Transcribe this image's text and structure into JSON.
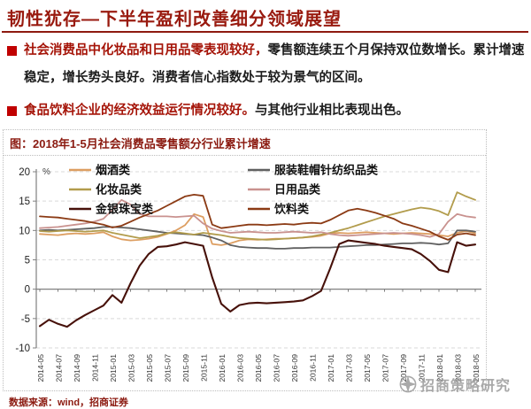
{
  "slide": {
    "title": "韧性犹存—下半年盈利改善细分领域展望",
    "bullets": [
      {
        "highlight": "社会消费品中化妆品和日用品零表现较好，",
        "rest": "零售额连续五个月保持双位数增长。累计增速稳定，增长势头良好。消费者信心指数处于较为景气的区间。"
      },
      {
        "highlight": "食品饮料企业的经济效益运行情况较好。",
        "rest": "与其他行业相比表现出色。"
      }
    ],
    "figure_caption": "图：2018年1-5月社会消费品零售额分行业累计增速",
    "footer_source": "数据来源：wind，招商证券",
    "watermark": "招商策略研究",
    "colors": {
      "title_red": "#991a0f",
      "highlight_red": "#a51408",
      "bullet_square": "#c00000",
      "caption_red": "#8b1a10",
      "grid_gray": "#d9d9d9",
      "axis_gray": "#808080",
      "watermark_gray": "#9b9b9b"
    }
  },
  "chart_data": {
    "type": "line",
    "title": "2018年1-5月社会消费品零售额分行业累计增速",
    "unit": "%",
    "ylim": [
      -10,
      20
    ],
    "yticks": [
      20,
      15,
      10,
      5,
      0,
      -5,
      -10
    ],
    "grid": "dashed-horizontal",
    "legend_position": "top-inside-two-columns",
    "x": [
      "2014-05",
      "2014-06",
      "2014-07",
      "2014-08",
      "2014-09",
      "2014-10",
      "2014-11",
      "2014-12",
      "2015-01",
      "2015-02",
      "2015-03",
      "2015-04",
      "2015-05",
      "2015-06",
      "2015-07",
      "2015-08",
      "2015-09",
      "2015-10",
      "2015-11",
      "2015-12",
      "2016-01",
      "2016-02",
      "2016-03",
      "2016-04",
      "2016-05",
      "2016-06",
      "2016-07",
      "2016-08",
      "2016-09",
      "2016-10",
      "2016-11",
      "2016-12",
      "2017-01",
      "2017-02",
      "2017-03",
      "2017-04",
      "2017-05",
      "2017-06",
      "2017-07",
      "2017-08",
      "2017-09",
      "2017-10",
      "2017-11",
      "2017-12",
      "2018-01",
      "2018-02",
      "2018-03",
      "2018-04",
      "2018-05"
    ],
    "x_tick_labels": [
      "2014-05",
      "2014-07",
      "2014-09",
      "2014-11",
      "2015-01",
      "2015-03",
      "2015-05",
      "2015-07",
      "2015-09",
      "2015-11",
      "2016-01",
      "2016-03",
      "2016-05",
      "2016-07",
      "2016-09",
      "2016-11",
      "2017-01",
      "2017-03",
      "2017-05",
      "2017-07",
      "2017-09",
      "2017-11",
      "2018-01",
      "2018-03",
      "2018-05"
    ],
    "series": [
      {
        "name": "烟酒类",
        "color": "#dd9e61",
        "values": [
          9.4,
          9.3,
          9.2,
          9.4,
          9.5,
          9.4,
          9.5,
          9.7,
          9.0,
          8.5,
          8.3,
          8.4,
          8.6,
          8.9,
          9.4,
          10.0,
          10.9,
          12.8,
          12.3,
          7.7,
          7.5,
          7.8,
          8.3,
          8.5,
          8.4,
          8.5,
          8.6,
          8.6,
          8.7,
          8.8,
          8.9,
          9.1,
          9.5,
          9.6,
          9.5,
          9.6,
          9.7,
          9.6,
          9.5,
          9.4,
          9.5,
          9.6,
          9.5,
          9.4,
          9.2,
          9.0,
          9.6,
          9.9,
          9.5
        ]
      },
      {
        "name": "服装鞋帽针纺织品类",
        "color": "#606060",
        "values": [
          10.0,
          10.1,
          10.0,
          10.1,
          10.2,
          10.3,
          10.4,
          10.6,
          10.6,
          10.5,
          10.4,
          10.2,
          10.0,
          9.8,
          9.6,
          9.5,
          9.4,
          9.3,
          9.2,
          8.8,
          8.3,
          7.5,
          7.2,
          7.1,
          7.0,
          7.0,
          6.9,
          6.9,
          7.0,
          7.0,
          7.1,
          7.1,
          7.1,
          7.2,
          7.3,
          7.4,
          7.5,
          7.5,
          7.6,
          7.7,
          7.8,
          7.8,
          7.9,
          7.8,
          7.6,
          7.8,
          10.0,
          10.0,
          9.8
        ]
      },
      {
        "name": "化妆品类",
        "color": "#b29c4c",
        "values": [
          9.9,
          9.8,
          9.9,
          10.0,
          9.9,
          9.8,
          9.9,
          10.0,
          9.6,
          9.3,
          9.0,
          8.7,
          8.9,
          9.1,
          9.5,
          9.7,
          9.5,
          9.3,
          9.6,
          9.4,
          9.2,
          8.9,
          8.7,
          8.6,
          8.5,
          8.4,
          8.5,
          8.6,
          8.7,
          8.8,
          9.0,
          9.3,
          9.6,
          10.0,
          10.4,
          10.9,
          11.4,
          11.9,
          12.4,
          12.8,
          13.2,
          13.6,
          13.9,
          13.7,
          13.3,
          12.6,
          16.5,
          15.8,
          15.2
        ]
      },
      {
        "name": "日用品类",
        "color": "#c9928f",
        "values": [
          10.4,
          10.5,
          10.6,
          10.8,
          11.0,
          11.2,
          11.5,
          12.0,
          13.5,
          15.2,
          14.4,
          12.8,
          12.4,
          12.4,
          12.4,
          12.3,
          12.4,
          12.5,
          11.2,
          10.3,
          9.9,
          9.6,
          9.7,
          9.8,
          9.7,
          9.6,
          9.6,
          9.7,
          9.8,
          9.7,
          9.6,
          9.7,
          9.4,
          9.2,
          9.1,
          9.2,
          9.3,
          9.4,
          9.5,
          9.6,
          9.5,
          9.4,
          9.2,
          8.9,
          9.4,
          11.5,
          12.8,
          12.4,
          12.2
        ]
      },
      {
        "name": "金银珠宝类",
        "color": "#47110a",
        "values": [
          -6.3,
          -5.2,
          -5.9,
          -6.4,
          -5.3,
          -4.4,
          -3.6,
          -2.8,
          -1.0,
          -2.3,
          1.0,
          4.0,
          6.0,
          7.2,
          7.3,
          7.6,
          8.0,
          7.7,
          7.4,
          2.0,
          -2.5,
          -3.8,
          -2.7,
          -2.4,
          -2.3,
          -2.4,
          -2.3,
          -2.2,
          -2.1,
          -1.9,
          -1.2,
          -0.3,
          3.5,
          7.7,
          8.3,
          8.1,
          7.9,
          7.7,
          7.4,
          7.2,
          7.0,
          6.8,
          6.0,
          4.8,
          3.3,
          2.9,
          8.0,
          7.4,
          7.6
        ]
      },
      {
        "name": "饮料类",
        "color": "#8b3a14",
        "values": [
          12.4,
          12.3,
          12.2,
          12.0,
          11.8,
          11.6,
          11.3,
          11.0,
          10.5,
          10.8,
          11.5,
          12.2,
          12.8,
          13.4,
          14.2,
          15.0,
          15.8,
          16.1,
          15.9,
          11.0,
          10.4,
          10.6,
          10.8,
          11.0,
          11.0,
          10.9,
          11.0,
          11.1,
          11.0,
          11.2,
          11.3,
          11.2,
          11.8,
          12.6,
          13.4,
          13.7,
          13.4,
          13.0,
          12.5,
          12.0,
          11.2,
          10.8,
          10.3,
          9.8,
          9.0,
          8.4,
          9.3,
          9.5,
          9.2
        ]
      }
    ]
  }
}
